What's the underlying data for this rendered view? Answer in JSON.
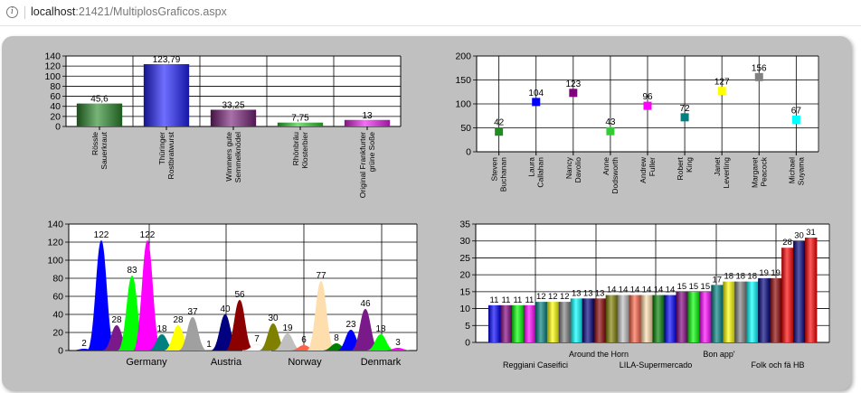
{
  "address": {
    "host": "localhost",
    "port_path": ":21421/MultiplosGraficos.aspx"
  },
  "chart_data": [
    {
      "type": "bar",
      "categories": [
        "Rössle Sauerkraut",
        "Thüringer Rostbratwurst",
        "Wimmers gute Semmelknödel",
        "Rhönbräu Klosterbier",
        "Original Frankfurter grüne Soße"
      ],
      "values": [
        45.6,
        123.79,
        33.25,
        7.75,
        13
      ],
      "value_labels": [
        "45,6",
        "123,79",
        "33,25",
        "7,75",
        "13"
      ],
      "colors": [
        "#2e8b2e",
        "#2222ff",
        "#7a237a",
        "#32cd32",
        "#ee22ee"
      ],
      "yticks": [
        0,
        20,
        40,
        60,
        80,
        100,
        120,
        140
      ],
      "ylim": [
        0,
        140
      ],
      "grid": true
    },
    {
      "type": "scatter",
      "categories": [
        "Steven Buchanan",
        "Laura Callahan",
        "Nancy Davolio",
        "Anne Dodsworth",
        "Andrew Fuller",
        "Robert King",
        "Janet Leverling",
        "Margaret Peacock",
        "Michael Suyama"
      ],
      "values": [
        42,
        104,
        123,
        43,
        96,
        72,
        127,
        156,
        67
      ],
      "value_labels": [
        "42",
        "104",
        "123",
        "43",
        "96",
        "72",
        "127",
        "156",
        "67"
      ],
      "colors": [
        "#228b22",
        "#0000ff",
        "#800080",
        "#32cd32",
        "#ff00ff",
        "#008080",
        "#ffff00",
        "#808080",
        "#00ffff"
      ],
      "yticks": [
        0,
        50,
        100,
        150,
        200
      ],
      "ylim": [
        0,
        200
      ],
      "grid": true
    },
    {
      "type": "area",
      "values": [
        2,
        122,
        28,
        83,
        122,
        18,
        28,
        37,
        1,
        40,
        56,
        7,
        30,
        19,
        6,
        77,
        8,
        23,
        46,
        18,
        3
      ],
      "value_labels": [
        "2",
        "122",
        "28",
        "83",
        "122",
        "18",
        "28",
        "37",
        "1",
        "40",
        "56",
        "7",
        "30",
        "19",
        "6",
        "77",
        "8",
        "23",
        "46",
        "18",
        "3"
      ],
      "colors": [
        "#0000ff",
        "#0000ff",
        "#7a1a8a",
        "#00ff00",
        "#ff00ff",
        "#008080",
        "#ffff00",
        "#a0a0a0",
        "#00ffff",
        "#000080",
        "#8b0000",
        "#ffffff",
        "#808000",
        "#c0c0c0",
        "#ff6347",
        "#ffdead",
        "#008000",
        "#0000ff",
        "#7a1a8a",
        "#00ff00",
        "#ff00ff"
      ],
      "xtick_labels": [
        "Germany",
        "Austria",
        "Norway",
        "Denmark"
      ],
      "yticks": [
        0,
        20,
        40,
        60,
        80,
        100,
        120,
        140
      ],
      "ylim": [
        0,
        140
      ],
      "grid": true
    },
    {
      "type": "bar",
      "values": [
        11,
        11,
        11,
        11,
        12,
        12,
        12,
        13,
        13,
        13,
        14,
        14,
        14,
        14,
        14,
        14,
        15,
        15,
        15,
        17,
        18,
        18,
        18,
        19,
        19,
        28,
        30,
        31
      ],
      "value_labels": [
        "11",
        "11",
        "11",
        "11",
        "12",
        "12",
        "12",
        "13",
        "13",
        "13",
        "14",
        "14",
        "14",
        "14",
        "14",
        "14",
        "15",
        "15",
        "15",
        "17",
        "18",
        "18",
        "18",
        "19",
        "19",
        "28",
        "30",
        "31"
      ],
      "colors": [
        "#0000ff",
        "#800080",
        "#00ff00",
        "#ff00ff",
        "#008080",
        "#ffff00",
        "#808080",
        "#00ffff",
        "#000080",
        "#8b0000",
        "#808000",
        "#c0c0c0",
        "#ff6347",
        "#ffdead",
        "#008000",
        "#0000ff",
        "#800080",
        "#00ff00",
        "#ff00ff",
        "#008080",
        "#ffff00",
        "#808080",
        "#00ffff",
        "#000080",
        "#8b0000",
        "#ff0000",
        "#000080",
        "#ff0000"
      ],
      "xtick_labels_top": [
        "Around the Horn",
        "Bon app'"
      ],
      "xtick_labels_bottom": [
        "Reggiani Caseifici",
        "LILA-Supermercado",
        "Folk och fä HB"
      ],
      "yticks": [
        0,
        5,
        10,
        15,
        20,
        25,
        30,
        35
      ],
      "ylim": [
        0,
        35
      ],
      "grid": true
    }
  ]
}
